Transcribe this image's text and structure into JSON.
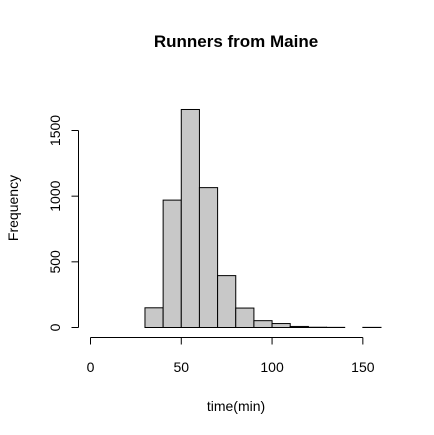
{
  "chart_data": {
    "type": "bar",
    "title": "Runners from Maine",
    "xlabel": "time(min)",
    "ylabel": "Frequency",
    "xlim": [
      0,
      160
    ],
    "ylim": [
      0,
      1650
    ],
    "xticks": [
      0,
      50,
      100,
      150
    ],
    "yticks": [
      0,
      500,
      1000,
      1500
    ],
    "bin_edges": [
      0,
      10,
      20,
      30,
      40,
      50,
      60,
      70,
      80,
      90,
      100,
      110,
      120,
      130,
      140,
      150,
      160
    ],
    "values": [
      0,
      0,
      0,
      150,
      970,
      1660,
      1065,
      395,
      148,
      52,
      30,
      8,
      2,
      1,
      0,
      1
    ],
    "bar_color": "#c8c8c8",
    "grid": false
  }
}
